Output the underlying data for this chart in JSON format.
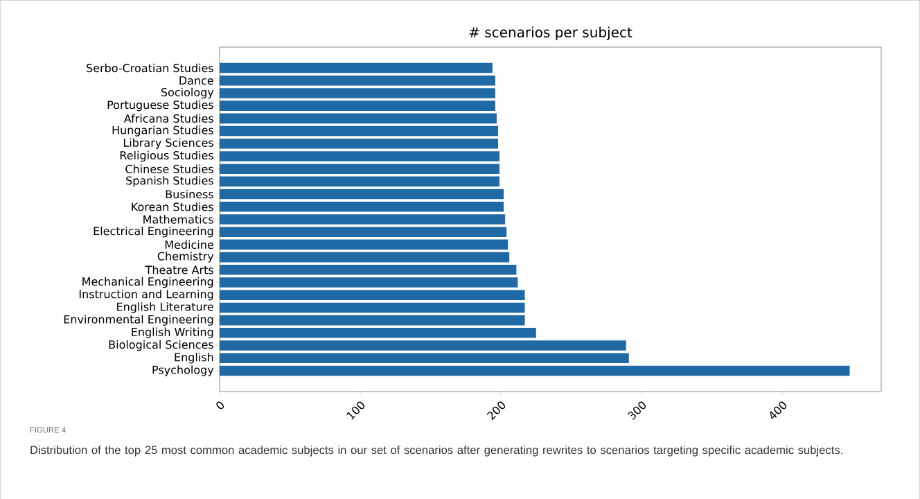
{
  "chart_data": {
    "type": "bar",
    "orientation": "horizontal",
    "title": "# scenarios per subject",
    "categories": [
      "Serbo-Croatian Studies",
      "Dance",
      "Sociology",
      "Portuguese Studies",
      "Africana Studies",
      "Hungarian Studies",
      "Library Sciences",
      "Religious Studies",
      "Chinese Studies",
      "Spanish Studies",
      "Business",
      "Korean Studies",
      "Mathematics",
      "Electrical Engineering",
      "Medicine",
      "Chemistry",
      "Theatre Arts",
      "Mechanical Engineering",
      "Instruction and Learning",
      "English Literature",
      "Environmental Engineering",
      "English Writing",
      "Biological Sciences",
      "English",
      "Psychology"
    ],
    "values": [
      194,
      196,
      196,
      196,
      197,
      198,
      198,
      199,
      199,
      199,
      202,
      202,
      203,
      204,
      205,
      206,
      211,
      212,
      217,
      217,
      217,
      225,
      289,
      291,
      448
    ],
    "color": "#1f6aa5",
    "xlim": [
      0,
      470.4
    ],
    "xticks": [
      0,
      100,
      200,
      300,
      400
    ],
    "grid": false,
    "annotations": [
      "FIGURE 4",
      "Distribution of the top 25 most common academic subjects in our set of scenarios after generating rewrites to scenarios targeting specific academic subjects."
    ]
  }
}
